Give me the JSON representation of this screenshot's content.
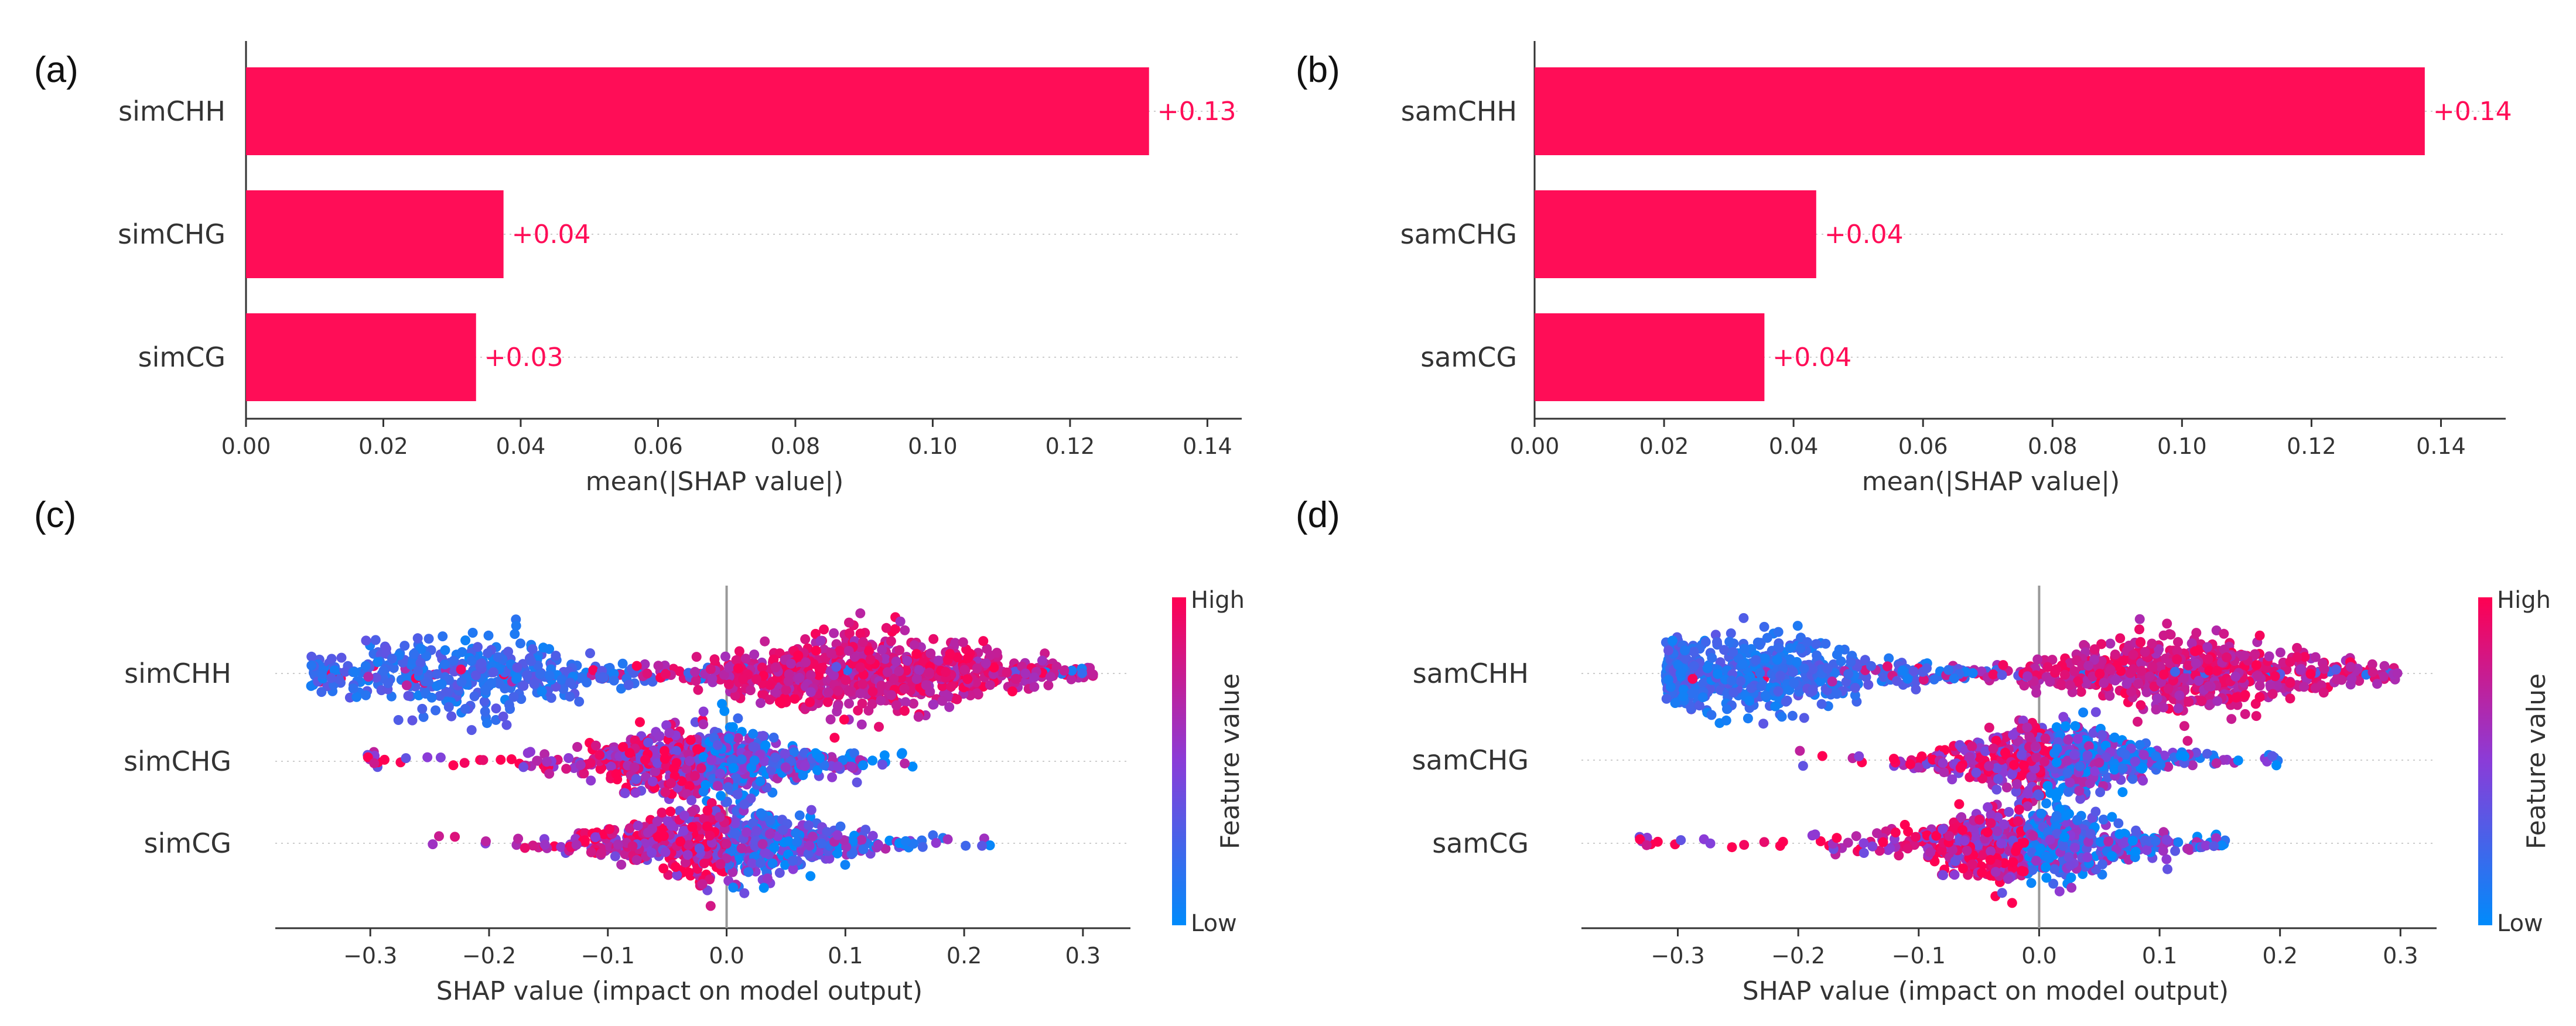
{
  "chart_data": [
    {
      "panel": "(a)",
      "type": "bar",
      "orientation": "horizontal",
      "categories": [
        "simCHH",
        "simCHG",
        "simCG"
      ],
      "values": [
        0.1315,
        0.0375,
        0.0335
      ],
      "labels": [
        "+0.13",
        "+0.04",
        "+0.03"
      ],
      "xlabel": "mean(|SHAP value|)",
      "xlim": [
        0,
        0.145
      ],
      "xticks": [
        "0.00",
        "0.02",
        "0.04",
        "0.06",
        "0.08",
        "0.10",
        "0.12",
        "0.14"
      ],
      "color": "#ff0d57"
    },
    {
      "panel": "(b)",
      "type": "bar",
      "orientation": "horizontal",
      "categories": [
        "samCHH",
        "samCHG",
        "samCG"
      ],
      "values": [
        0.1375,
        0.0435,
        0.0355
      ],
      "labels": [
        "+0.14",
        "+0.04",
        "+0.04"
      ],
      "xlabel": "mean(|SHAP value|)",
      "xlim": [
        0,
        0.15
      ],
      "xticks": [
        "0.00",
        "0.02",
        "0.04",
        "0.06",
        "0.08",
        "0.10",
        "0.12",
        "0.14"
      ],
      "color": "#ff0d57"
    },
    {
      "panel": "(c)",
      "type": "scatter",
      "subtype": "beeswarm",
      "categories": [
        "simCHH",
        "simCHG",
        "simCG"
      ],
      "xlabel": "SHAP value (impact on model output)",
      "xlim": [
        -0.38,
        0.34
      ],
      "xticks": [
        "−0.3",
        "−0.2",
        "−0.1",
        "0.0",
        "0.1",
        "0.2",
        "0.3"
      ],
      "colorbar": {
        "title": "Feature value",
        "high": "High",
        "low": "Low",
        "high_color": "#ff0052",
        "low_color": "#008bfb"
      },
      "distributions": [
        {
          "min": -0.35,
          "max": 0.31,
          "modes": [
            [
              -0.22,
              0.55,
              "low"
            ],
            [
              0.12,
              1.0,
              "high"
            ]
          ]
        },
        {
          "min": -0.31,
          "max": 0.16,
          "modes": [
            [
              -0.02,
              1.0,
              "mixed"
            ]
          ]
        },
        {
          "min": -0.27,
          "max": 0.23,
          "modes": [
            [
              0.0,
              1.0,
              "mixed"
            ]
          ]
        }
      ]
    },
    {
      "panel": "(d)",
      "type": "scatter",
      "subtype": "beeswarm",
      "categories": [
        "samCHH",
        "samCHG",
        "samCG"
      ],
      "xlabel": "SHAP value (impact on model output)",
      "xlim": [
        -0.38,
        0.33
      ],
      "xticks": [
        "−0.3",
        "−0.2",
        "−0.1",
        "0.0",
        "0.1",
        "0.2",
        "0.3"
      ],
      "colorbar": {
        "title": "Feature value",
        "high": "High",
        "low": "Low",
        "high_color": "#ff0052",
        "low_color": "#008bfb"
      },
      "distributions": [
        {
          "min": -0.31,
          "max": 0.3,
          "modes": [
            [
              -0.24,
              0.9,
              "low"
            ],
            [
              0.12,
              1.0,
              "high"
            ]
          ]
        },
        {
          "min": -0.21,
          "max": 0.2,
          "modes": [
            [
              0.01,
              1.0,
              "mixed"
            ]
          ]
        },
        {
          "min": -0.34,
          "max": 0.16,
          "modes": [
            [
              -0.01,
              1.0,
              "mixed"
            ]
          ]
        }
      ]
    }
  ]
}
